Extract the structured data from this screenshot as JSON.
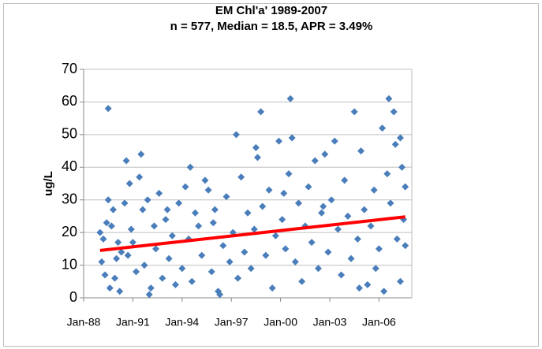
{
  "chart_data": {
    "type": "scatter",
    "title": "EM Chl'a' 1989-2007",
    "subtitle": "n = 577, Median = 18.5, APR = 3.49%",
    "y_label": "ug/L",
    "xlim": [
      1988,
      2008
    ],
    "ylim": [
      0,
      70
    ],
    "xticks": [
      {
        "value": 1988,
        "label": "Jan-88"
      },
      {
        "value": 1991,
        "label": "Jan-91"
      },
      {
        "value": 1994,
        "label": "Jan-94"
      },
      {
        "value": 1997,
        "label": "Jan-97"
      },
      {
        "value": 2000,
        "label": "Jan-00"
      },
      {
        "value": 2003,
        "label": "Jan-03"
      },
      {
        "value": 2006,
        "label": "Jan-06"
      }
    ],
    "yticks": [
      0,
      10,
      20,
      30,
      40,
      50,
      60,
      70
    ],
    "grid": true,
    "color": "#4a7ebb",
    "x": [
      1989.0,
      1989.1,
      1989.2,
      1989.3,
      1989.4,
      1989.5,
      1989.5,
      1989.6,
      1989.7,
      1989.8,
      1989.9,
      1990.0,
      1990.1,
      1990.2,
      1990.3,
      1990.5,
      1990.6,
      1990.7,
      1990.8,
      1991.0,
      1991.2,
      1991.4,
      1991.5,
      1991.6,
      1991.7,
      1991.9,
      1992.0,
      1992.1,
      1992.3,
      1992.4,
      1992.6,
      1992.8,
      1993.0,
      1993.2,
      1993.4,
      1993.6,
      1993.8,
      1994.0,
      1994.2,
      1994.4,
      1994.5,
      1994.6,
      1994.8,
      1995.0,
      1995.2,
      1995.4,
      1995.6,
      1995.8,
      1996.0,
      1996.2,
      1996.3,
      1996.5,
      1996.7,
      1996.9,
      1997.1,
      1997.3,
      1997.4,
      1997.6,
      1997.8,
      1998.0,
      1998.2,
      1998.4,
      1998.6,
      1998.8,
      1998.9,
      1999.1,
      1999.3,
      1999.5,
      1999.7,
      1999.9,
      2000.1,
      2000.3,
      2000.5,
      2000.6,
      2000.7,
      2000.9,
      2001.1,
      2001.3,
      2001.5,
      2001.7,
      2001.9,
      2002.1,
      2002.3,
      2002.5,
      2002.7,
      2002.9,
      2003.1,
      2003.3,
      2003.5,
      2003.7,
      2003.9,
      2004.1,
      2004.3,
      2004.5,
      2004.7,
      2004.9,
      2005.1,
      2005.3,
      2005.5,
      2005.7,
      2005.8,
      2006.0,
      2006.2,
      2006.3,
      2006.5,
      2006.6,
      2006.7,
      2006.9,
      2007.0,
      2007.1,
      2007.3,
      2007.4,
      2007.5,
      2007.6,
      2007.6,
      2007.3,
      2002.6,
      1998.5,
      1995.9,
      1990.9,
      1993.1,
      2000.2,
      2004.8
    ],
    "values": [
      20,
      11,
      18,
      7,
      23,
      58,
      30,
      3,
      22,
      27,
      6,
      12,
      17,
      2,
      14,
      29,
      42,
      13,
      35,
      17,
      8,
      37,
      44,
      27,
      10,
      30,
      1,
      3,
      22,
      15,
      32,
      6,
      24,
      12,
      19,
      4,
      29,
      9,
      34,
      18,
      40,
      5,
      26,
      22,
      13,
      36,
      33,
      8,
      27,
      2,
      1,
      16,
      31,
      11,
      20,
      50,
      6,
      37,
      14,
      26,
      9,
      21,
      43,
      57,
      28,
      13,
      33,
      3,
      19,
      48,
      24,
      15,
      38,
      61,
      49,
      11,
      29,
      5,
      22,
      34,
      17,
      42,
      9,
      26,
      44,
      14,
      30,
      48,
      21,
      7,
      36,
      25,
      12,
      57,
      18,
      45,
      27,
      4,
      22,
      33,
      9,
      15,
      52,
      2,
      38,
      61,
      29,
      57,
      47,
      18,
      5,
      40,
      24,
      34,
      16,
      49,
      28,
      46,
      23,
      21,
      27,
      32,
      3
    ],
    "trend_line": {
      "color": "#ff0000",
      "x": [
        1989.0,
        2007.6
      ],
      "values": [
        14.5,
        24.8
      ]
    }
  }
}
